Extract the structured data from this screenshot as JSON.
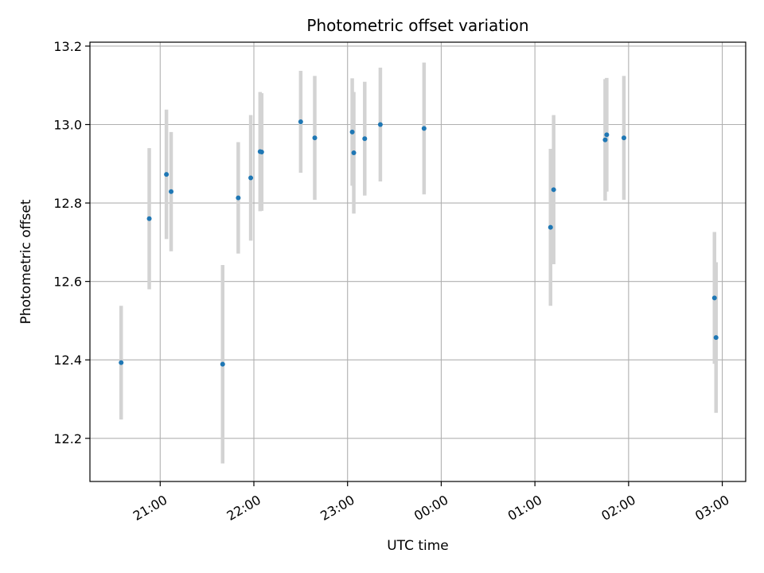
{
  "chart_data": {
    "type": "scatter",
    "title": "Photometric offset variation",
    "xlabel": "UTC time",
    "ylabel": "Photometric offset",
    "grid": true,
    "xlim": [
      "20:15",
      "03:15"
    ],
    "ylim": [
      12.09,
      13.21
    ],
    "x_ticks": [
      "21:00",
      "22:00",
      "23:00",
      "00:00",
      "01:00",
      "02:00",
      "03:00"
    ],
    "y_ticks": [
      12.2,
      12.4,
      12.6,
      12.8,
      13.0,
      13.2
    ],
    "y_tick_labels": [
      "12.2",
      "12.4",
      "12.6",
      "12.8",
      "13.0",
      "13.2"
    ],
    "colors": {
      "point": "#1f77b4",
      "errorbar": "#d3d3d3",
      "grid": "#b0b0b0"
    },
    "points": [
      {
        "x": "20:35",
        "y": 12.393,
        "yerr": 0.145
      },
      {
        "x": "20:53",
        "y": 12.76,
        "yerr": 0.18
      },
      {
        "x": "21:04",
        "y": 12.873,
        "yerr": 0.165
      },
      {
        "x": "21:07",
        "y": 12.829,
        "yerr": 0.152
      },
      {
        "x": "21:40",
        "y": 12.389,
        "yerr": 0.253
      },
      {
        "x": "21:50",
        "y": 12.813,
        "yerr": 0.142
      },
      {
        "x": "21:58",
        "y": 12.864,
        "yerr": 0.16
      },
      {
        "x": "22:04",
        "y": 12.931,
        "yerr": 0.152
      },
      {
        "x": "22:05",
        "y": 12.93,
        "yerr": 0.15
      },
      {
        "x": "22:30",
        "y": 13.007,
        "yerr": 0.13
      },
      {
        "x": "22:39",
        "y": 12.966,
        "yerr": 0.158
      },
      {
        "x": "23:03",
        "y": 12.981,
        "yerr": 0.137
      },
      {
        "x": "23:04",
        "y": 12.928,
        "yerr": 0.155
      },
      {
        "x": "23:11",
        "y": 12.964,
        "yerr": 0.145
      },
      {
        "x": "23:21",
        "y": 13.0,
        "yerr": 0.145
      },
      {
        "x": "23:49",
        "y": 12.99,
        "yerr": 0.168
      },
      {
        "x": "01:10",
        "y": 12.738,
        "yerr": 0.2
      },
      {
        "x": "01:12",
        "y": 12.834,
        "yerr": 0.19
      },
      {
        "x": "01:45",
        "y": 12.961,
        "yerr": 0.155
      },
      {
        "x": "01:46",
        "y": 12.974,
        "yerr": 0.145
      },
      {
        "x": "01:57",
        "y": 12.966,
        "yerr": 0.158
      },
      {
        "x": "02:55",
        "y": 12.558,
        "yerr": 0.168
      },
      {
        "x": "02:56",
        "y": 12.457,
        "yerr": 0.192
      }
    ]
  }
}
